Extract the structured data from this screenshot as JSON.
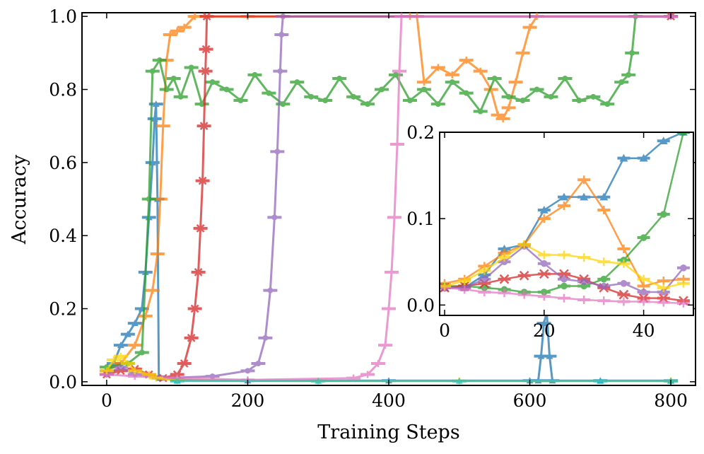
{
  "chart_data": {
    "type": "line",
    "xlabel": "Training Steps",
    "ylabel": "Accuracy",
    "xlim": [
      -35,
      835
    ],
    "ylim": [
      -0.01,
      1.01
    ],
    "xticks": [
      0,
      200,
      400,
      600,
      800
    ],
    "xtick_labels": [
      "0",
      "200",
      "400",
      "600",
      "800"
    ],
    "yticks": [
      0.0,
      0.2,
      0.4,
      0.6,
      0.8,
      1.0
    ],
    "ytick_labels": [
      "0.0",
      "0.2",
      "0.4",
      "0.6",
      "0.8",
      "1.0"
    ],
    "series": [
      {
        "name": "blue",
        "color": "#1f77b4",
        "marker": "triangle",
        "points": [
          [
            0,
            0.03
          ],
          [
            10,
            0.05
          ],
          [
            20,
            0.1
          ],
          [
            30,
            0.13
          ],
          [
            40,
            0.16
          ],
          [
            50,
            0.2
          ],
          [
            55,
            0.3
          ],
          [
            60,
            0.45
          ],
          [
            65,
            0.6
          ],
          [
            68,
            0.72
          ],
          [
            70,
            0.76
          ],
          [
            72,
            0.5
          ],
          [
            74,
            0.01
          ],
          [
            100,
            0.005
          ],
          [
            200,
            0.003
          ],
          [
            400,
            0.003
          ],
          [
            600,
            0.003
          ],
          [
            612,
            0.003
          ],
          [
            616,
            0.07
          ],
          [
            620,
            0.16
          ],
          [
            624,
            0.19
          ],
          [
            628,
            0.07
          ],
          [
            632,
            0.003
          ],
          [
            700,
            0.003
          ],
          [
            800,
            0.003
          ]
        ]
      },
      {
        "name": "orange",
        "color": "#ff7f0e",
        "marker": "plus",
        "points": [
          [
            0,
            0.03
          ],
          [
            20,
            0.05
          ],
          [
            40,
            0.1
          ],
          [
            55,
            0.18
          ],
          [
            65,
            0.25
          ],
          [
            72,
            0.35
          ],
          [
            76,
            0.5
          ],
          [
            80,
            0.7
          ],
          [
            85,
            0.88
          ],
          [
            90,
            0.95
          ],
          [
            100,
            0.96
          ],
          [
            110,
            0.97
          ],
          [
            125,
            1.0
          ],
          [
            200,
            1.0
          ],
          [
            430,
            1.0
          ],
          [
            440,
            1.0
          ],
          [
            450,
            0.82
          ],
          [
            470,
            0.86
          ],
          [
            490,
            0.84
          ],
          [
            510,
            0.88
          ],
          [
            530,
            0.85
          ],
          [
            545,
            0.8
          ],
          [
            555,
            0.73
          ],
          [
            562,
            0.72
          ],
          [
            570,
            0.75
          ],
          [
            580,
            0.82
          ],
          [
            590,
            0.9
          ],
          [
            600,
            0.97
          ],
          [
            610,
            1.0
          ],
          [
            800,
            1.0
          ]
        ]
      },
      {
        "name": "green",
        "color": "#2ca02c",
        "marker": "circle",
        "points": [
          [
            0,
            0.04
          ],
          [
            30,
            0.05
          ],
          [
            50,
            0.08
          ],
          [
            60,
            0.5
          ],
          [
            65,
            0.85
          ],
          [
            75,
            0.88
          ],
          [
            85,
            0.8
          ],
          [
            95,
            0.83
          ],
          [
            105,
            0.78
          ],
          [
            120,
            0.86
          ],
          [
            135,
            0.76
          ],
          [
            150,
            0.82
          ],
          [
            170,
            0.8
          ],
          [
            190,
            0.77
          ],
          [
            210,
            0.84
          ],
          [
            230,
            0.79
          ],
          [
            250,
            0.76
          ],
          [
            270,
            0.82
          ],
          [
            290,
            0.78
          ],
          [
            310,
            0.77
          ],
          [
            330,
            0.83
          ],
          [
            350,
            0.78
          ],
          [
            370,
            0.76
          ],
          [
            390,
            0.8
          ],
          [
            410,
            0.84
          ],
          [
            430,
            0.77
          ],
          [
            450,
            0.8
          ],
          [
            470,
            0.76
          ],
          [
            490,
            0.82
          ],
          [
            510,
            0.79
          ],
          [
            530,
            0.74
          ],
          [
            550,
            0.83
          ],
          [
            570,
            0.78
          ],
          [
            590,
            0.77
          ],
          [
            610,
            0.8
          ],
          [
            630,
            0.78
          ],
          [
            650,
            0.83
          ],
          [
            670,
            0.77
          ],
          [
            690,
            0.78
          ],
          [
            710,
            0.76
          ],
          [
            730,
            0.82
          ],
          [
            740,
            0.84
          ],
          [
            745,
            0.9
          ],
          [
            750,
            1.0
          ],
          [
            800,
            1.0
          ]
        ]
      },
      {
        "name": "red",
        "color": "#d62728",
        "marker": "x",
        "points": [
          [
            0,
            0.02
          ],
          [
            20,
            0.03
          ],
          [
            40,
            0.035
          ],
          [
            60,
            0.02
          ],
          [
            80,
            0.01
          ],
          [
            100,
            0.02
          ],
          [
            110,
            0.05
          ],
          [
            120,
            0.12
          ],
          [
            125,
            0.2
          ],
          [
            130,
            0.3
          ],
          [
            133,
            0.42
          ],
          [
            136,
            0.55
          ],
          [
            138,
            0.7
          ],
          [
            140,
            0.85
          ],
          [
            141,
            0.91
          ],
          [
            142,
            1.0
          ],
          [
            800,
            1.0
          ]
        ]
      },
      {
        "name": "purple",
        "color": "#9467bd",
        "marker": "circle",
        "points": [
          [
            0,
            0.02
          ],
          [
            20,
            0.04
          ],
          [
            40,
            0.02
          ],
          [
            80,
            0.01
          ],
          [
            150,
            0.015
          ],
          [
            200,
            0.03
          ],
          [
            215,
            0.05
          ],
          [
            225,
            0.12
          ],
          [
            232,
            0.25
          ],
          [
            238,
            0.45
          ],
          [
            242,
            0.63
          ],
          [
            246,
            0.85
          ],
          [
            248,
            0.95
          ],
          [
            250,
            1.0
          ],
          [
            800,
            1.0
          ]
        ]
      },
      {
        "name": "pink",
        "color": "#e377c2",
        "marker": "plus",
        "points": [
          [
            0,
            0.02
          ],
          [
            40,
            0.015
          ],
          [
            100,
            0.01
          ],
          [
            200,
            0.005
          ],
          [
            350,
            0.01
          ],
          [
            370,
            0.02
          ],
          [
            385,
            0.05
          ],
          [
            395,
            0.1
          ],
          [
            400,
            0.2
          ],
          [
            404,
            0.3
          ],
          [
            408,
            0.45
          ],
          [
            412,
            0.65
          ],
          [
            415,
            0.85
          ],
          [
            418,
            1.0
          ],
          [
            800,
            1.0
          ]
        ]
      },
      {
        "name": "yellow",
        "color": "#ffd400",
        "marker": "plus",
        "points": [
          [
            0,
            0.03
          ],
          [
            10,
            0.06
          ],
          [
            20,
            0.07
          ],
          [
            30,
            0.05
          ],
          [
            40,
            0.03
          ],
          [
            60,
            0.02
          ],
          [
            70,
            0.01
          ],
          [
            100,
            0.003
          ],
          [
            300,
            0.002
          ],
          [
            500,
            0.002
          ],
          [
            800,
            0.002
          ]
        ]
      },
      {
        "name": "cyan-baseline",
        "color": "#17becf",
        "marker": "triangle",
        "points": [
          [
            100,
            0.002
          ],
          [
            300,
            0.002
          ],
          [
            500,
            0.002
          ],
          [
            700,
            0.002
          ],
          [
            800,
            0.002
          ]
        ]
      }
    ],
    "inset": {
      "xlim": [
        -1,
        50
      ],
      "ylim": [
        -0.012,
        0.2
      ],
      "xticks": [
        0,
        20,
        40
      ],
      "xtick_labels": [
        "0",
        "20",
        "40"
      ],
      "yticks": [
        0.0,
        0.1,
        0.2
      ],
      "ytick_labels": [
        "0.0",
        "0.1",
        "0.2"
      ],
      "series": [
        {
          "name": "blue",
          "color": "#1f77b4",
          "marker": "triangle",
          "points": [
            [
              0,
              0.02
            ],
            [
              4,
              0.02
            ],
            [
              8,
              0.035
            ],
            [
              12,
              0.065
            ],
            [
              16,
              0.07
            ],
            [
              20,
              0.11
            ],
            [
              24,
              0.125
            ],
            [
              28,
              0.125
            ],
            [
              32,
              0.125
            ],
            [
              36,
              0.17
            ],
            [
              40,
              0.17
            ],
            [
              44,
              0.19
            ],
            [
              48,
              0.2
            ]
          ]
        },
        {
          "name": "orange",
          "color": "#ff7f0e",
          "marker": "plus",
          "points": [
            [
              0,
              0.025
            ],
            [
              4,
              0.03
            ],
            [
              8,
              0.045
            ],
            [
              12,
              0.06
            ],
            [
              16,
              0.07
            ],
            [
              20,
              0.1
            ],
            [
              24,
              0.115
            ],
            [
              28,
              0.145
            ],
            [
              32,
              0.11
            ],
            [
              36,
              0.065
            ],
            [
              40,
              0.022
            ],
            [
              44,
              0.028
            ],
            [
              48,
              0.03
            ]
          ]
        },
        {
          "name": "green",
          "color": "#2ca02c",
          "marker": "circle",
          "points": [
            [
              0,
              0.022
            ],
            [
              4,
              0.022
            ],
            [
              8,
              0.02
            ],
            [
              12,
              0.018
            ],
            [
              16,
              0.015
            ],
            [
              20,
              0.015
            ],
            [
              24,
              0.022
            ],
            [
              28,
              0.022
            ],
            [
              32,
              0.03
            ],
            [
              36,
              0.052
            ],
            [
              40,
              0.078
            ],
            [
              44,
              0.105
            ],
            [
              48,
              0.2
            ]
          ]
        },
        {
          "name": "red",
          "color": "#d62728",
          "marker": "x",
          "points": [
            [
              0,
              0.02
            ],
            [
              4,
              0.022
            ],
            [
              8,
              0.025
            ],
            [
              12,
              0.03
            ],
            [
              16,
              0.034
            ],
            [
              20,
              0.036
            ],
            [
              24,
              0.036
            ],
            [
              28,
              0.03
            ],
            [
              32,
              0.02
            ],
            [
              36,
              0.012
            ],
            [
              40,
              0.008
            ],
            [
              44,
              0.008
            ],
            [
              48,
              0.005
            ]
          ]
        },
        {
          "name": "purple",
          "color": "#9467bd",
          "marker": "circle",
          "points": [
            [
              0,
              0.02
            ],
            [
              4,
              0.02
            ],
            [
              8,
              0.03
            ],
            [
              12,
              0.05
            ],
            [
              16,
              0.068
            ],
            [
              20,
              0.048
            ],
            [
              24,
              0.03
            ],
            [
              28,
              0.027
            ],
            [
              32,
              0.022
            ],
            [
              36,
              0.025
            ],
            [
              40,
              0.015
            ],
            [
              44,
              0.015
            ],
            [
              48,
              0.043
            ]
          ]
        },
        {
          "name": "pink",
          "color": "#e377c2",
          "marker": "plus",
          "points": [
            [
              0,
              0.02
            ],
            [
              4,
              0.018
            ],
            [
              8,
              0.015
            ],
            [
              12,
              0.014
            ],
            [
              16,
              0.012
            ],
            [
              20,
              0.01
            ],
            [
              24,
              0.008
            ],
            [
              28,
              0.006
            ],
            [
              32,
              0.005
            ],
            [
              36,
              0.004
            ],
            [
              40,
              0.004
            ],
            [
              44,
              0.003
            ],
            [
              48,
              0.002
            ]
          ]
        },
        {
          "name": "yellow",
          "color": "#ffd400",
          "marker": "plus",
          "points": [
            [
              0,
              0.022
            ],
            [
              4,
              0.028
            ],
            [
              8,
              0.04
            ],
            [
              12,
              0.055
            ],
            [
              16,
              0.07
            ],
            [
              20,
              0.058
            ],
            [
              24,
              0.058
            ],
            [
              28,
              0.055
            ],
            [
              32,
              0.05
            ],
            [
              36,
              0.048
            ],
            [
              40,
              0.03
            ],
            [
              44,
              0.02
            ],
            [
              48,
              0.025
            ]
          ]
        }
      ]
    }
  }
}
